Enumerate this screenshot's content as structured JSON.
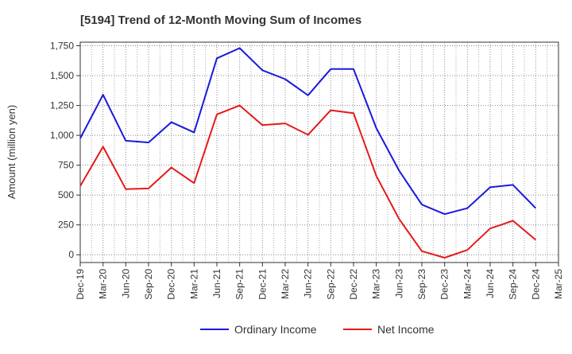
{
  "chart_data": {
    "type": "line",
    "title": "[5194]  Trend of 12-Month Moving Sum of Incomes",
    "xlabel": "",
    "ylabel": "Amount (million yen)",
    "ylim": [
      -65,
      1780
    ],
    "yticks": [
      0,
      250,
      500,
      750,
      1000,
      1250,
      1500,
      1750
    ],
    "ytick_labels": [
      "0",
      "250",
      "500",
      "750",
      "1,000",
      "1,250",
      "1,500",
      "1,750"
    ],
    "xtick_labels": [
      "Dec-19",
      "Mar-20",
      "Jun-20",
      "Sep-20",
      "Dec-20",
      "Mar-21",
      "Jun-21",
      "Sep-21",
      "Dec-21",
      "Mar-22",
      "Jun-22",
      "Sep-22",
      "Dec-22",
      "Mar-23",
      "Jun-23",
      "Sep-23",
      "Dec-23",
      "Mar-24",
      "Jun-24",
      "Sep-24",
      "Dec-24",
      "Mar-25"
    ],
    "categories": [
      "Dec-19",
      "Mar-20",
      "Jun-20",
      "Sep-20",
      "Dec-20",
      "Mar-21",
      "Jun-21",
      "Sep-21",
      "Dec-21",
      "Mar-22",
      "Jun-22",
      "Sep-22",
      "Dec-22",
      "Mar-23",
      "Jun-23",
      "Sep-23",
      "Dec-23",
      "Mar-24",
      "Jun-24",
      "Sep-24",
      "Dec-24"
    ],
    "grid": true,
    "legend_position": "bottom-center",
    "series": [
      {
        "name": "Ordinary Income",
        "color": "#1a1adc",
        "values": [
          975,
          1340,
          955,
          940,
          1110,
          1025,
          1645,
          1730,
          1545,
          1470,
          1335,
          1555,
          1555,
          1060,
          705,
          420,
          340,
          390,
          565,
          585,
          390
        ]
      },
      {
        "name": "Net Income",
        "color": "#e41a1a",
        "values": [
          575,
          905,
          550,
          555,
          730,
          600,
          1175,
          1250,
          1085,
          1100,
          1005,
          1210,
          1185,
          660,
          300,
          30,
          -25,
          40,
          220,
          285,
          125
        ]
      }
    ]
  }
}
